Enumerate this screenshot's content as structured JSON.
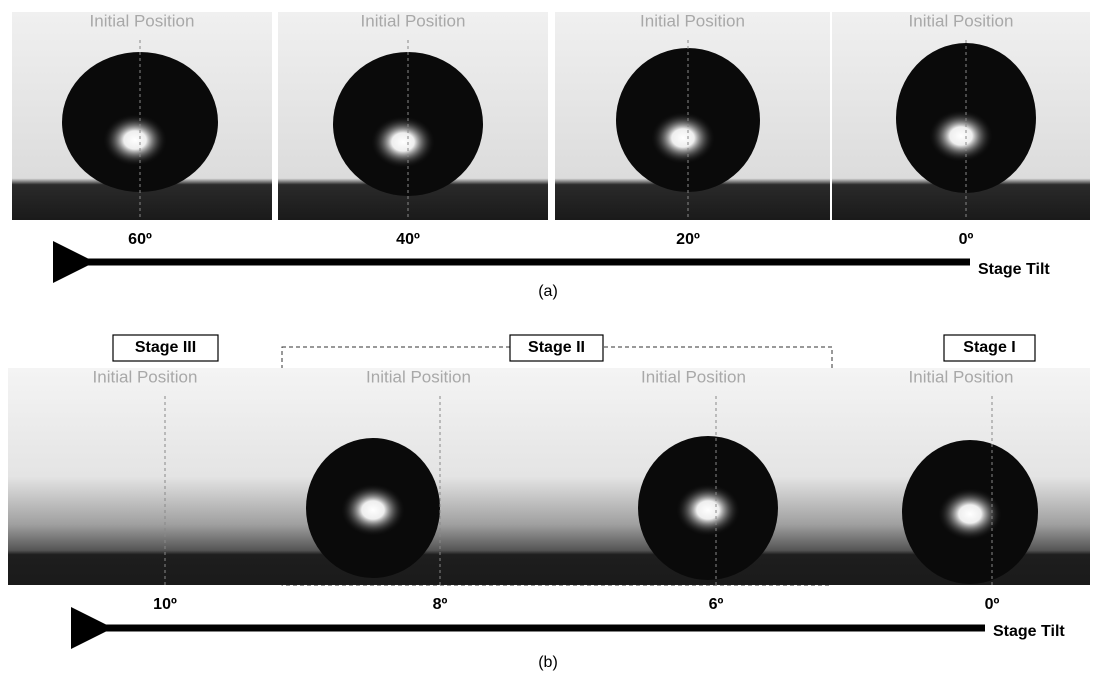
{
  "panel_a": {
    "frames": [
      {
        "label": "Initial Position",
        "angle": "60º"
      },
      {
        "label": "Initial Position",
        "angle": "40º"
      },
      {
        "label": "Initial Position",
        "angle": "20º"
      },
      {
        "label": "Initial Position",
        "angle": "0º"
      }
    ],
    "axis_label": "Stage Tilt",
    "caption": "(a)"
  },
  "panel_b": {
    "stages": [
      "Stage III",
      "Stage II",
      "Stage I"
    ],
    "frames": [
      {
        "label": "Initial Position",
        "angle": "10º"
      },
      {
        "label": "Initial Position",
        "angle": "8º"
      },
      {
        "label": "Initial Position",
        "angle": "6º"
      },
      {
        "label": "Initial Position",
        "angle": "0º"
      }
    ],
    "axis_label": "Stage Tilt",
    "caption": "(b)"
  }
}
